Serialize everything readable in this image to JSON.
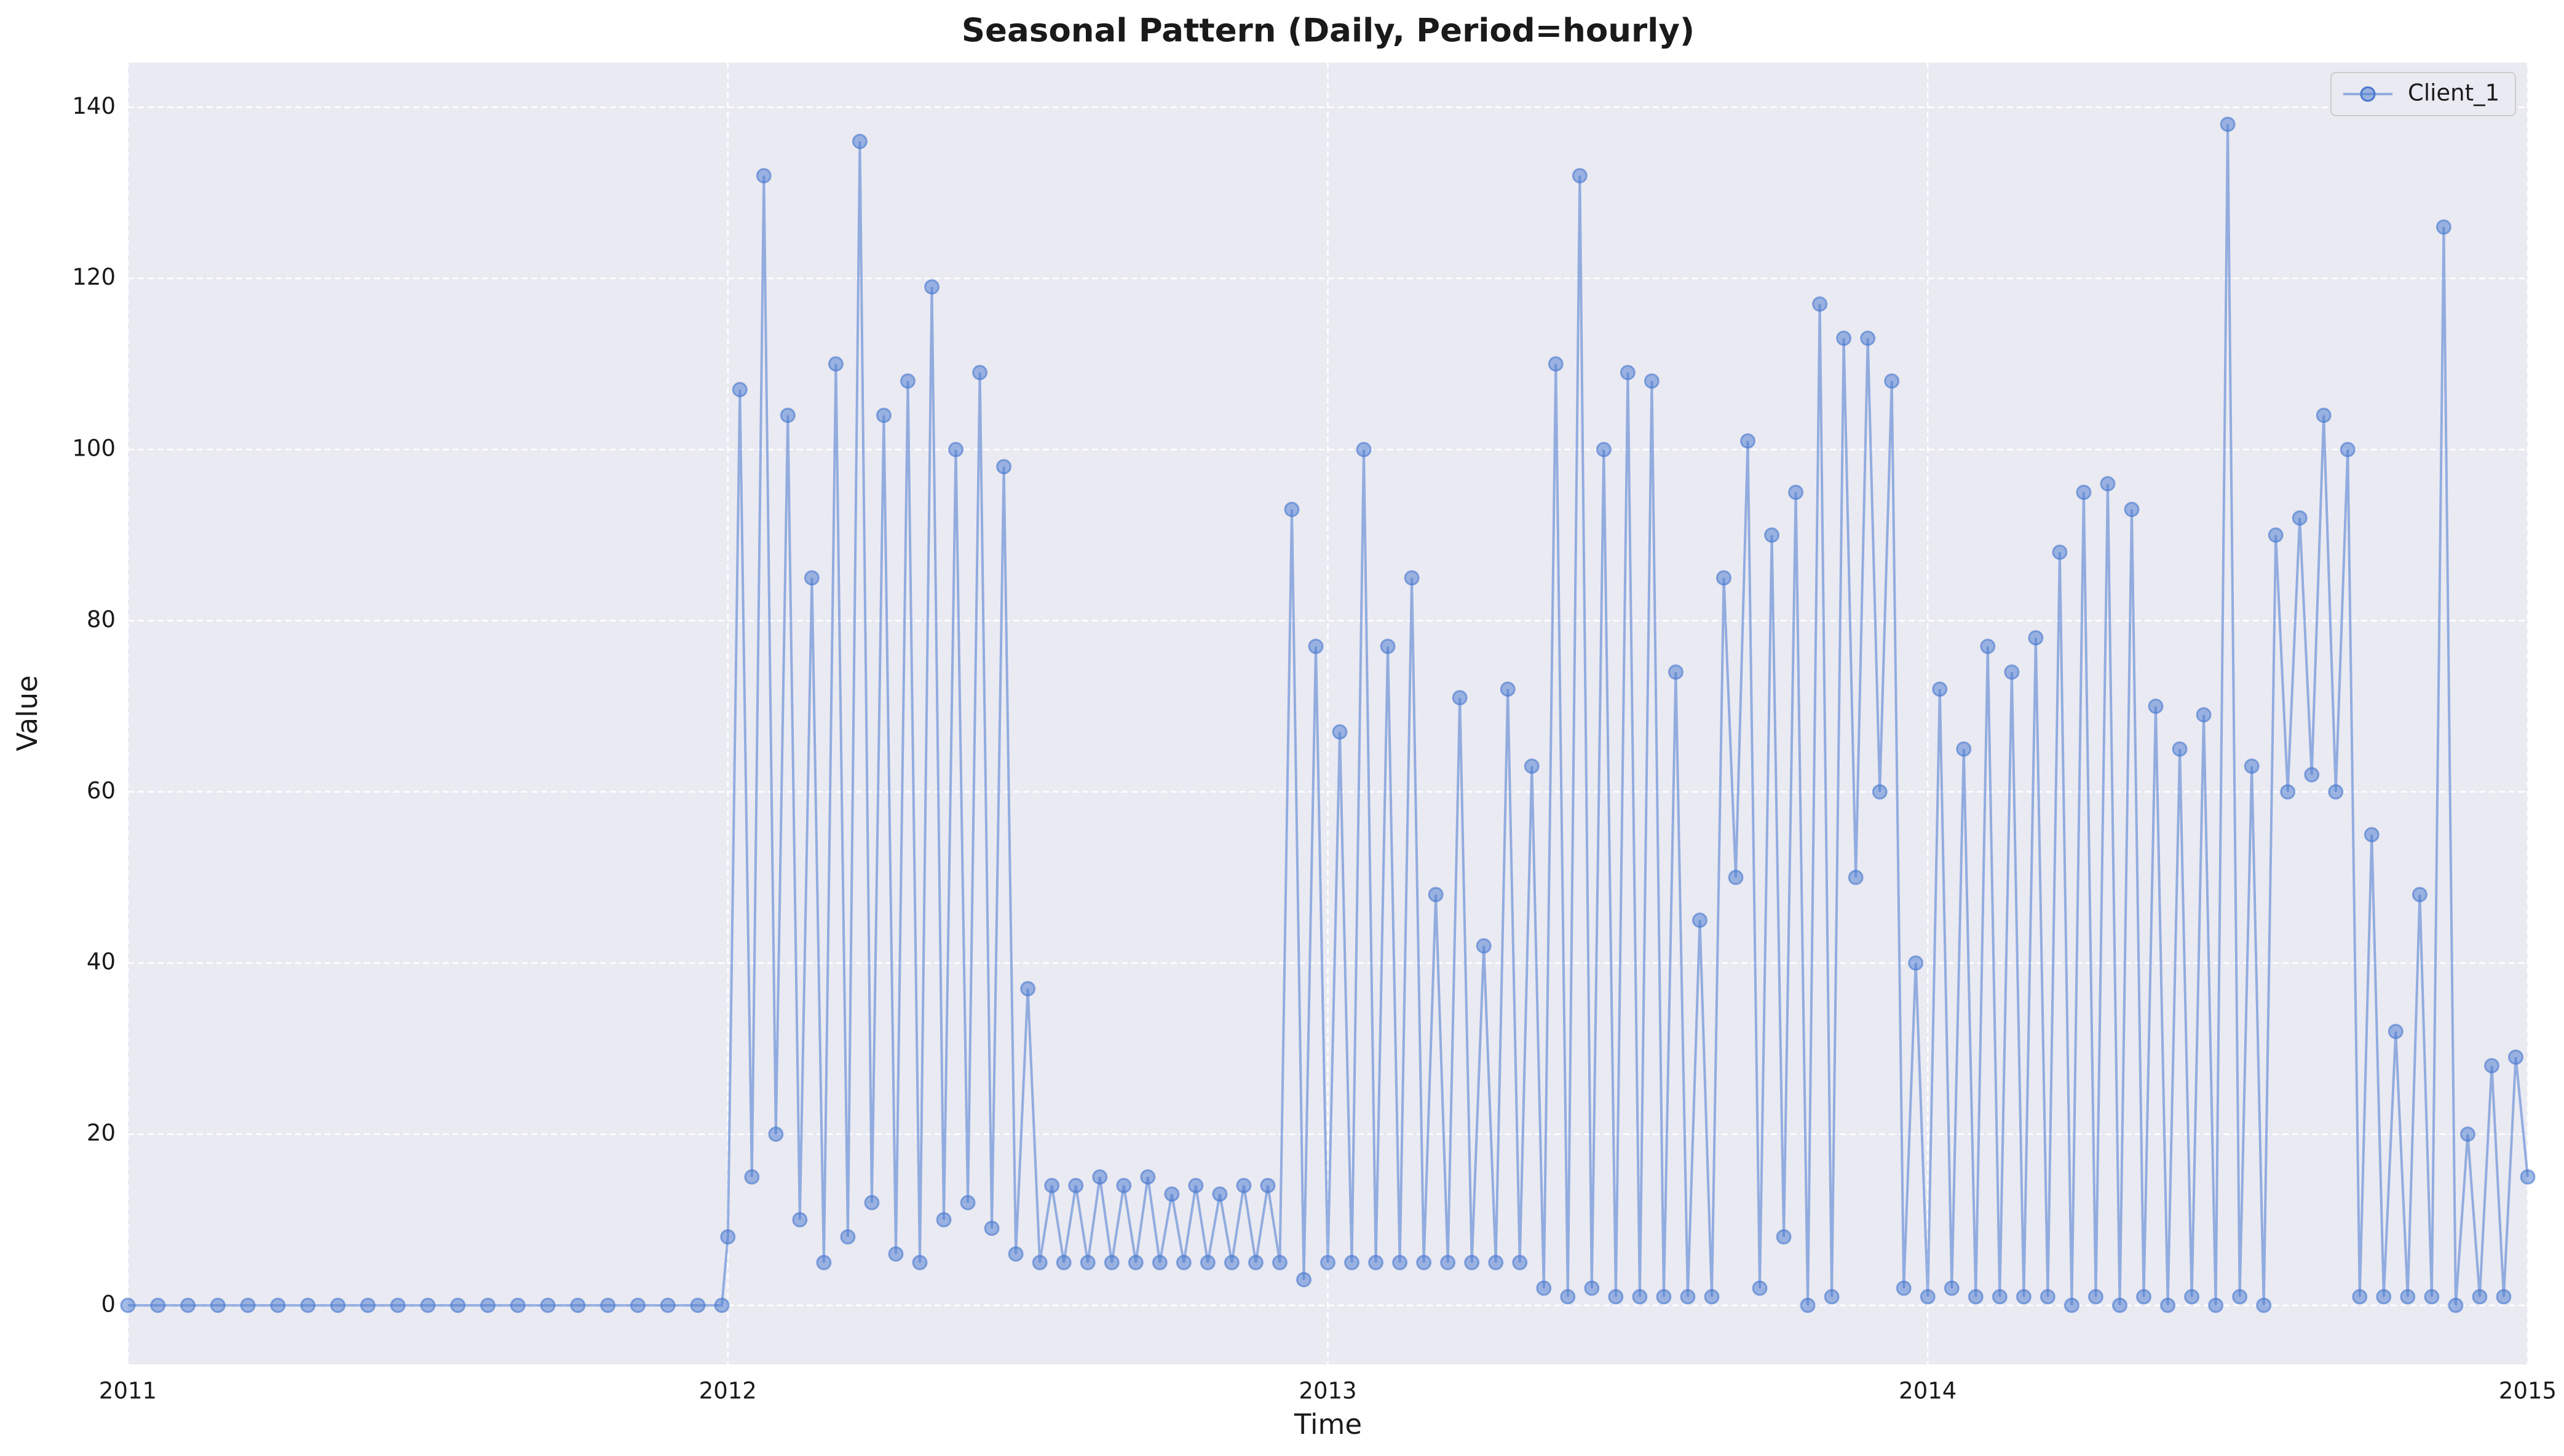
{
  "chart_data": {
    "type": "line",
    "title": "Seasonal Pattern (Daily, Period=hourly)",
    "x_label": "Time",
    "y_label": "Value",
    "xlim": [
      2011,
      2015
    ],
    "xticks": [
      2011,
      2012,
      2013,
      2014,
      2015
    ],
    "ylim": [
      -6.9,
      145.2
    ],
    "yticks": [
      0,
      20,
      40,
      60,
      80,
      100,
      120,
      140
    ],
    "grid": true,
    "legend": "upper right",
    "x": [
      2011.0,
      2011.05,
      2011.1,
      2011.15,
      2011.2,
      2011.25,
      2011.3,
      2011.35,
      2011.4,
      2011.45,
      2011.5,
      2011.55,
      2011.6,
      2011.65,
      2011.7,
      2011.75,
      2011.8,
      2011.85,
      2011.9,
      2011.95,
      2011.99,
      2012.0,
      2012.02,
      2012.04,
      2012.06,
      2012.08,
      2012.1,
      2012.12,
      2012.14,
      2012.16,
      2012.18,
      2012.2,
      2012.22,
      2012.24,
      2012.26,
      2012.28,
      2012.3,
      2012.32,
      2012.34,
      2012.36,
      2012.38,
      2012.4,
      2012.42,
      2012.44,
      2012.46,
      2012.48,
      2012.5,
      2012.52,
      2012.54,
      2012.56,
      2012.58,
      2012.6,
      2012.62,
      2012.64,
      2012.66,
      2012.68,
      2012.7,
      2012.72,
      2012.74,
      2012.76,
      2012.78,
      2012.8,
      2012.82,
      2012.84,
      2012.86,
      2012.88,
      2012.9,
      2012.92,
      2012.94,
      2012.96,
      2012.98,
      2013.0,
      2013.02,
      2013.04,
      2013.06,
      2013.08,
      2013.1,
      2013.12,
      2013.14,
      2013.16,
      2013.18,
      2013.2,
      2013.22,
      2013.24,
      2013.26,
      2013.28,
      2013.3,
      2013.32,
      2013.34,
      2013.36,
      2013.38,
      2013.4,
      2013.42,
      2013.44,
      2013.46,
      2013.48,
      2013.5,
      2013.52,
      2013.54,
      2013.56,
      2013.58,
      2013.6,
      2013.62,
      2013.64,
      2013.66,
      2013.68,
      2013.7,
      2013.72,
      2013.74,
      2013.76,
      2013.78,
      2013.8,
      2013.82,
      2013.84,
      2013.86,
      2013.88,
      2013.9,
      2013.92,
      2013.94,
      2013.96,
      2013.98,
      2014.0,
      2014.02,
      2014.04,
      2014.06,
      2014.08,
      2014.1,
      2014.12,
      2014.14,
      2014.16,
      2014.18,
      2014.2,
      2014.22,
      2014.24,
      2014.26,
      2014.28,
      2014.3,
      2014.32,
      2014.34,
      2014.36,
      2014.38,
      2014.4,
      2014.42,
      2014.44,
      2014.46,
      2014.48,
      2014.5,
      2014.52,
      2014.54,
      2014.56,
      2014.58,
      2014.6,
      2014.62,
      2014.64,
      2014.66,
      2014.68,
      2014.7,
      2014.72,
      2014.74,
      2014.76,
      2014.78,
      2014.8,
      2014.82,
      2014.84,
      2014.86,
      2014.88,
      2014.9,
      2014.92,
      2014.94,
      2014.96,
      2014.98,
      2015.0
    ],
    "series": [
      {
        "name": "Client_1",
        "color": "#4878cf",
        "values": [
          0,
          0,
          0,
          0,
          0,
          0,
          0,
          0,
          0,
          0,
          0,
          0,
          0,
          0,
          0,
          0,
          0,
          0,
          0,
          0,
          0,
          8,
          107,
          15,
          132,
          20,
          104,
          10,
          85,
          5,
          110,
          8,
          136,
          12,
          104,
          6,
          108,
          5,
          119,
          10,
          100,
          12,
          109,
          9,
          98,
          6,
          37,
          5,
          14,
          5,
          14,
          5,
          15,
          5,
          14,
          5,
          15,
          5,
          13,
          5,
          14,
          5,
          13,
          5,
          14,
          5,
          14,
          5,
          93,
          3,
          77,
          5,
          67,
          5,
          100,
          5,
          77,
          5,
          85,
          5,
          48,
          5,
          71,
          5,
          42,
          5,
          72,
          5,
          63,
          2,
          110,
          1,
          132,
          2,
          100,
          1,
          109,
          1,
          108,
          1,
          74,
          1,
          45,
          1,
          85,
          50,
          101,
          2,
          90,
          8,
          95,
          0,
          117,
          1,
          113,
          50,
          113,
          60,
          108,
          2,
          40,
          1,
          72,
          2,
          65,
          1,
          77,
          1,
          74,
          1,
          78,
          1,
          88,
          0,
          95,
          1,
          96,
          0,
          93,
          1,
          70,
          0,
          65,
          1,
          69,
          0,
          138,
          1,
          63,
          0,
          90,
          60,
          92,
          62,
          104,
          60,
          100,
          1,
          55,
          1,
          32,
          1,
          48,
          1,
          126,
          0,
          20,
          1,
          28,
          1,
          29,
          15
        ]
      }
    ]
  }
}
